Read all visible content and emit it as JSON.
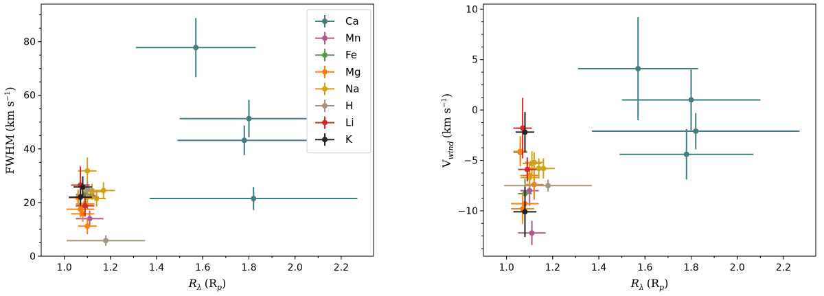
{
  "chart_data": [
    {
      "type": "scatter",
      "id": "left",
      "xlabel_main": "R",
      "xlabel_sub": "λ",
      "xlabel_paren_open": "(R",
      "xlabel_paren_sub": "p",
      "xlabel_paren_close": ")",
      "ylabel_main": "FWHM",
      "ylabel_units": "(km s",
      "ylabel_exp": "−1",
      "ylabel_close": ")",
      "xlim": [
        0.9,
        2.34
      ],
      "ylim": [
        0,
        94
      ],
      "xticks": [
        1.0,
        1.2,
        1.4,
        1.6,
        1.8,
        2.0,
        2.2
      ],
      "xtick_labels": [
        "1.0",
        "1.2",
        "1.4",
        "1.6",
        "1.8",
        "2.0",
        "2.2"
      ],
      "yticks": [
        0,
        20,
        40,
        60,
        80
      ],
      "ytick_labels": [
        "0",
        "20",
        "40",
        "60",
        "80"
      ],
      "legend_position": "top-right",
      "series": [
        {
          "name": "Ca",
          "color": "#3f7f7f",
          "points": [
            {
              "x": 1.57,
              "y": 77.8,
              "xerr": 0.26,
              "yerr": 11
            },
            {
              "x": 1.8,
              "y": 51.3,
              "xerr": 0.3,
              "yerr": 7
            },
            {
              "x": 1.78,
              "y": 43.2,
              "xerr": 0.29,
              "yerr": 5.5
            },
            {
              "x": 1.82,
              "y": 21.5,
              "xerr": 0.45,
              "yerr": 4.3
            }
          ]
        },
        {
          "name": "Mn",
          "color": "#b05a8a",
          "points": [
            {
              "x": 1.11,
              "y": 14.0,
              "xerr": 0.06,
              "yerr": 3
            },
            {
              "x": 1.1,
              "y": 22.5,
              "xerr": 0.04,
              "yerr": 5
            }
          ]
        },
        {
          "name": "Fe",
          "color": "#559955",
          "points": [
            {
              "x": 1.07,
              "y": 22.0,
              "xerr": 0.03,
              "yerr": 3
            },
            {
              "x": 1.09,
              "y": 23.0,
              "xerr": 0.04,
              "yerr": 3
            }
          ]
        },
        {
          "name": "Mg",
          "color": "#ff7f0e",
          "points": [
            {
              "x": 1.06,
              "y": 21.8,
              "xerr": 0.04,
              "yerr": 3
            },
            {
              "x": 1.07,
              "y": 17.5,
              "xerr": 0.06,
              "yerr": 3
            },
            {
              "x": 1.08,
              "y": 15.8,
              "xerr": 0.05,
              "yerr": 3
            },
            {
              "x": 1.1,
              "y": 11.2,
              "xerr": 0.04,
              "yerr": 3
            },
            {
              "x": 1.09,
              "y": 19.5,
              "xerr": 0.04,
              "yerr": 3
            }
          ]
        },
        {
          "name": "Na",
          "color": "#d4a017",
          "points": [
            {
              "x": 1.1,
              "y": 31.8,
              "xerr": 0.04,
              "yerr": 5
            },
            {
              "x": 1.17,
              "y": 24.5,
              "xerr": 0.05,
              "yerr": 3
            },
            {
              "x": 1.14,
              "y": 21.5,
              "xerr": 0.04,
              "yerr": 3
            },
            {
              "x": 1.12,
              "y": 24.0,
              "xerr": 0.04,
              "yerr": 3
            },
            {
              "x": 1.1,
              "y": 22.0,
              "xerr": 0.05,
              "yerr": 3
            },
            {
              "x": 1.09,
              "y": 19.5,
              "xerr": 0.04,
              "yerr": 3
            }
          ]
        },
        {
          "name": "H",
          "color": "#a89580",
          "points": [
            {
              "x": 1.18,
              "y": 5.8,
              "xerr": 0.17,
              "yerr": 2
            },
            {
              "x": 1.1,
              "y": 25.0,
              "xerr": 0.03,
              "yerr": 3
            }
          ]
        },
        {
          "name": "Li",
          "color": "#d62728",
          "points": [
            {
              "x": 1.07,
              "y": 26.5,
              "xerr": 0.04,
              "yerr": 7
            },
            {
              "x": 1.09,
              "y": 18.8,
              "xerr": 0.04,
              "yerr": 4
            }
          ]
        },
        {
          "name": "K",
          "color": "#222222",
          "points": [
            {
              "x": 1.08,
              "y": 25.8,
              "xerr": 0.04,
              "yerr": 4
            },
            {
              "x": 1.07,
              "y": 22.0,
              "xerr": 0.05,
              "yerr": 3
            }
          ]
        }
      ]
    },
    {
      "type": "scatter",
      "id": "right",
      "xlabel_main": "R",
      "xlabel_sub": "λ",
      "xlabel_paren_open": "(R",
      "xlabel_paren_sub": "p",
      "xlabel_paren_close": ")",
      "ylabel_main": "V",
      "ylabel_sub": "wind",
      "ylabel_units": "(km s",
      "ylabel_exp": "−1",
      "ylabel_close": ")",
      "xlim": [
        0.9,
        2.34
      ],
      "ylim": [
        -14.5,
        10.5
      ],
      "xticks": [
        1.0,
        1.2,
        1.4,
        1.6,
        1.8,
        2.0,
        2.2
      ],
      "xtick_labels": [
        "1.0",
        "1.2",
        "1.4",
        "1.6",
        "1.8",
        "2.0",
        "2.2"
      ],
      "yticks": [
        -10,
        -5,
        0,
        5,
        10
      ],
      "ytick_labels": [
        "−10",
        "−5",
        "0",
        "5",
        "10"
      ],
      "series": [
        {
          "name": "Ca",
          "color": "#3f7f7f",
          "points": [
            {
              "x": 1.57,
              "y": 4.1,
              "xerr": 0.26,
              "yerr": 5.1
            },
            {
              "x": 1.8,
              "y": 1.0,
              "xerr": 0.3,
              "yerr": 3.0
            },
            {
              "x": 1.82,
              "y": -2.1,
              "xerr": 0.45,
              "yerr": 1.8
            },
            {
              "x": 1.78,
              "y": -4.4,
              "xerr": 0.29,
              "yerr": 2.5
            }
          ]
        },
        {
          "name": "Mn",
          "color": "#b05a8a",
          "points": [
            {
              "x": 1.11,
              "y": -12.2,
              "xerr": 0.06,
              "yerr": 1.2
            },
            {
              "x": 1.1,
              "y": -8.0,
              "xerr": 0.04,
              "yerr": 1.5
            }
          ]
        },
        {
          "name": "Fe",
          "color": "#559955",
          "points": [
            {
              "x": 1.08,
              "y": -8.3,
              "xerr": 0.03,
              "yerr": 1.5
            },
            {
              "x": 1.06,
              "y": -4.2,
              "xerr": 0.03,
              "yerr": 1.0
            }
          ]
        },
        {
          "name": "Mg",
          "color": "#ff7f0e",
          "points": [
            {
              "x": 1.06,
              "y": -4.1,
              "xerr": 0.03,
              "yerr": 1.5
            },
            {
              "x": 1.08,
              "y": -9.3,
              "xerr": 0.06,
              "yerr": 2.0
            },
            {
              "x": 1.07,
              "y": -9.8,
              "xerr": 0.05,
              "yerr": 1.5
            },
            {
              "x": 1.12,
              "y": -7.4,
              "xerr": 0.04,
              "yerr": 1.5
            },
            {
              "x": 1.1,
              "y": -6.5,
              "xerr": 0.04,
              "yerr": 1.2
            }
          ]
        },
        {
          "name": "Na",
          "color": "#d4a017",
          "points": [
            {
              "x": 1.11,
              "y": -5.3,
              "xerr": 0.04,
              "yerr": 1.2
            },
            {
              "x": 1.14,
              "y": -5.8,
              "xerr": 0.04,
              "yerr": 1.0
            },
            {
              "x": 1.16,
              "y": -5.8,
              "xerr": 0.05,
              "yerr": 1.0
            },
            {
              "x": 1.12,
              "y": -5.2,
              "xerr": 0.04,
              "yerr": 1.0
            },
            {
              "x": 1.1,
              "y": -6.7,
              "xerr": 0.04,
              "yerr": 1.0
            }
          ]
        },
        {
          "name": "H",
          "color": "#a89580",
          "points": [
            {
              "x": 1.18,
              "y": -7.5,
              "xerr": 0.19,
              "yerr": 0.6
            }
          ]
        },
        {
          "name": "Li",
          "color": "#d62728",
          "points": [
            {
              "x": 1.07,
              "y": -1.8,
              "xerr": 0.04,
              "yerr": 3.0
            },
            {
              "x": 1.09,
              "y": -5.9,
              "xerr": 0.04,
              "yerr": 1.2
            }
          ]
        },
        {
          "name": "K",
          "color": "#222222",
          "points": [
            {
              "x": 1.08,
              "y": -2.2,
              "xerr": 0.04,
              "yerr": 2.0
            },
            {
              "x": 1.08,
              "y": -10.1,
              "xerr": 0.05,
              "yerr": 2.5
            }
          ]
        }
      ]
    }
  ]
}
